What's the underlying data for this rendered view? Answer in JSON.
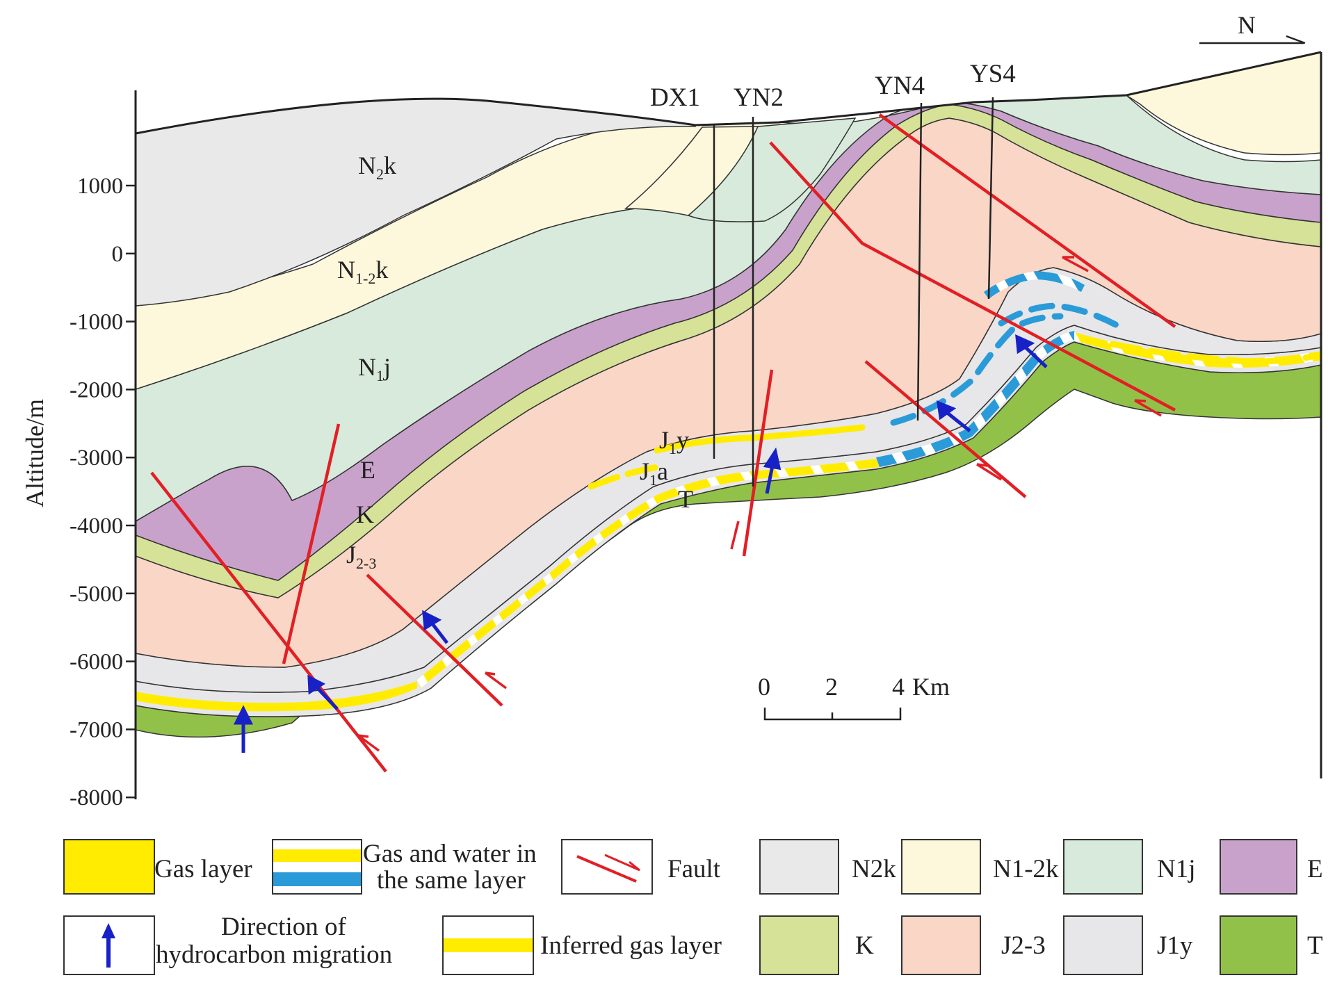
{
  "compass": {
    "label": "N"
  },
  "axis": {
    "title": "Altitude/m",
    "ticks": [
      "1000",
      "0",
      "-1000",
      "-2000",
      "-3000",
      "-4000",
      "-5000",
      "-6000",
      "-7000",
      "-8000"
    ]
  },
  "wells": [
    "DX1",
    "YN2",
    "YN4",
    "YS4"
  ],
  "strata": {
    "n2k": {
      "base": "N",
      "sub": "2",
      "tail": "k"
    },
    "n12k": {
      "base": "N",
      "sub": "1-2",
      "tail": "k"
    },
    "n1j": {
      "base": "N",
      "sub": "1",
      "tail": "j"
    },
    "e": "E",
    "k": "K",
    "j23": {
      "base": "J",
      "sub": "2-3"
    },
    "j1y": {
      "base": "J",
      "sub": "1",
      "tail": "y"
    },
    "j1a": {
      "base": "J",
      "sub": "1",
      "tail": "a"
    },
    "t": "T"
  },
  "scale": {
    "labels": [
      "0",
      "2",
      "4"
    ],
    "unit": "Km"
  },
  "legend": {
    "gas_layer": "Gas layer",
    "gas_water_line1": "Gas and water in",
    "gas_water_line2": "the same layer",
    "fault": "Fault",
    "n2k": "N2k",
    "n12k": "N1-2k",
    "n1j": "N1j",
    "e": "E",
    "migration_line1": "Direction of",
    "migration_line2": "hydrocarbon migration",
    "inferred_gas": "Inferred gas layer",
    "k": "K",
    "j23": "J2-3",
    "j1y": "J1y",
    "t": "T"
  },
  "colors": {
    "n2k": "#e9e9ea",
    "n12k": "#fdf8dc",
    "n1j": "#d7eadb",
    "e": "#c9a2cb",
    "k": "#d5e297",
    "j23": "#f9d6c6",
    "j1y": "#e7e7e9",
    "t": "#92c14a",
    "gas": "#ffec00",
    "water": "#2a9bd8",
    "fault": "#e11f25",
    "arrow": "#1821c6"
  }
}
